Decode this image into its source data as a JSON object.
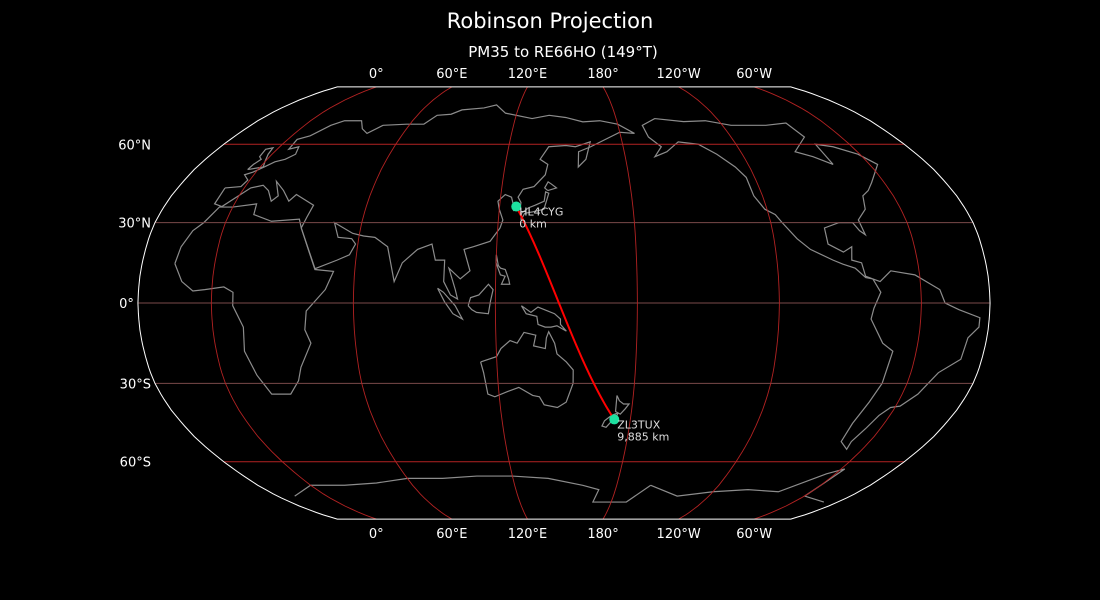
{
  "title": "Robinson Projection",
  "subtitle": "PM35 to RE66HO (149°T)",
  "projection": "Robinson",
  "central_longitude": 149,
  "longitude_labels": [
    "0°",
    "60°E",
    "120°E",
    "180°",
    "120°W",
    "60°W"
  ],
  "latitude_labels": [
    "60°N",
    "30°N",
    "0°",
    "30°S",
    "60°S"
  ],
  "points": [
    {
      "call": "HL4CYG",
      "dist": "0 km",
      "lat": 36.0,
      "lon": 127.5
    },
    {
      "call": "ZL3TUX",
      "dist": "9,885 km",
      "lat": -43.5,
      "lon": 172.5
    }
  ],
  "colors": {
    "background": "#000000",
    "coastline": "#8c8c8c",
    "graticule": "#b22222",
    "path": "#ff0000",
    "marker": "#1de0a0",
    "border": "#ffffff"
  }
}
